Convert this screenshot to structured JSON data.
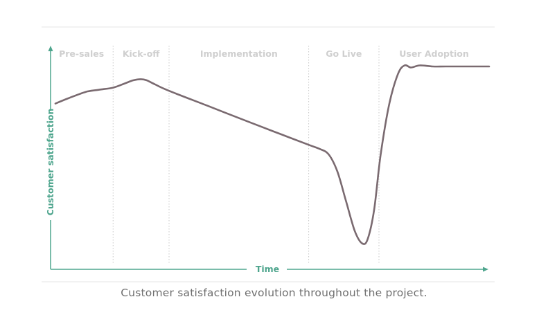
{
  "chart_data": {
    "type": "line",
    "title": "",
    "xlabel": "Time",
    "ylabel": "Customer satisfaction",
    "ylim": [
      0,
      100
    ],
    "xlim": [
      0,
      100
    ],
    "phases": [
      {
        "label": "Pre-sales",
        "start": 0,
        "end": 13.3
      },
      {
        "label": "Kick-off",
        "start": 13.3,
        "end": 26.2
      },
      {
        "label": "Implementation",
        "start": 26.2,
        "end": 58.4
      },
      {
        "label": "Go Live",
        "start": 58.4,
        "end": 74.6
      },
      {
        "label": "User Adoption",
        "start": 74.6,
        "end": 100
      }
    ],
    "series": [
      {
        "values": [
          [
            0,
            74
          ],
          [
            3,
            76.5
          ],
          [
            7,
            79.5
          ],
          [
            10,
            80.5
          ],
          [
            13.3,
            81.5
          ],
          [
            16,
            83.5
          ],
          [
            18,
            85
          ],
          [
            19.7,
            85.5
          ],
          [
            21,
            85
          ],
          [
            23,
            83
          ],
          [
            26.2,
            80
          ],
          [
            35,
            73
          ],
          [
            45,
            65
          ],
          [
            52,
            59.5
          ],
          [
            58.4,
            54.5
          ],
          [
            61,
            52.5
          ],
          [
            63,
            50
          ],
          [
            65,
            42
          ],
          [
            67,
            28
          ],
          [
            69,
            14
          ],
          [
            70.7,
            8
          ],
          [
            72,
            10
          ],
          [
            73.5,
            24
          ],
          [
            75,
            50
          ],
          [
            77,
            74
          ],
          [
            79,
            88
          ],
          [
            80.5,
            92
          ],
          [
            82,
            91
          ],
          [
            84,
            92
          ],
          [
            87,
            91.5
          ],
          [
            90,
            91.5
          ],
          [
            95,
            91.5
          ],
          [
            100,
            91.5
          ]
        ]
      }
    ],
    "colors": {
      "line": "#7a6a70",
      "axis": "#4ea58d",
      "divider": "#c8c8c8",
      "phase_text": "#cfcfcf"
    }
  },
  "caption": "Customer satisfaction evolution throughout the project."
}
